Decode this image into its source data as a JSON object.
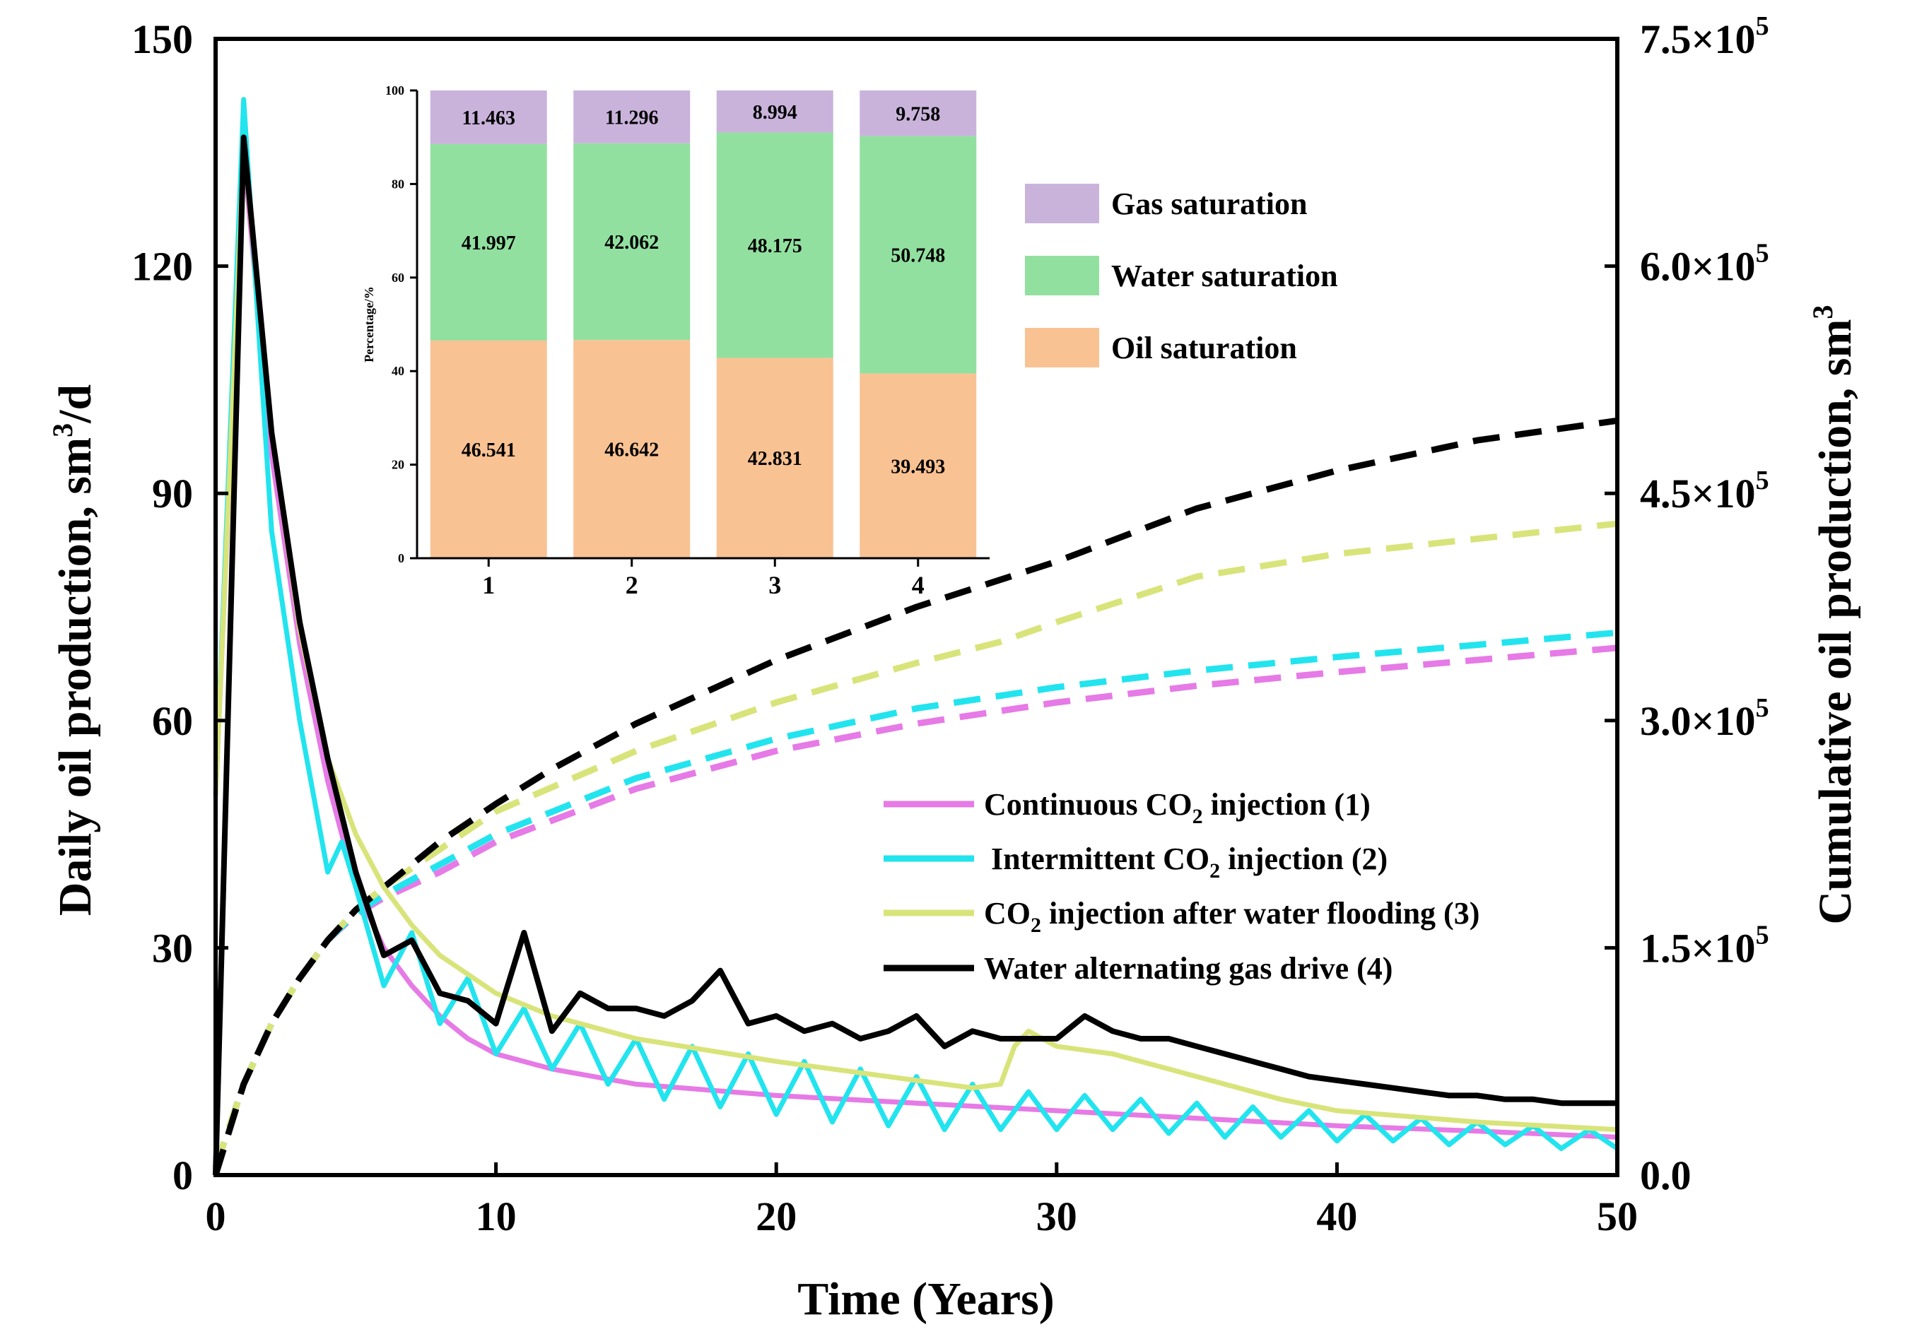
{
  "chart_data": {
    "type": "line",
    "main": {
      "xlabel": "Time (Years)",
      "ylabel": "Daily oil production, sm³/d",
      "ylabel_parts": {
        "pre": "Daily oil production, sm",
        "sup": "3",
        "post": "/d"
      },
      "y2label": "Cumulative oil production, sm³",
      "y2label_parts": {
        "pre": "Cumulative oil production, sm",
        "sup": "3"
      },
      "xlim": [
        0,
        50
      ],
      "ylim": [
        0,
        150
      ],
      "y2lim": [
        0,
        750000
      ],
      "xticks": [
        "0",
        "10",
        "20",
        "30",
        "40",
        "50"
      ],
      "yticks": [
        "0",
        "30",
        "60",
        "90",
        "120",
        "150"
      ],
      "y2ticks": [
        {
          "mant": "0.0",
          "exp": ""
        },
        {
          "mant": "1.5×10",
          "exp": "5"
        },
        {
          "mant": "3.0×10",
          "exp": "5"
        },
        {
          "mant": "4.5×10",
          "exp": "5"
        },
        {
          "mant": "6.0×10",
          "exp": "5"
        },
        {
          "mant": "7.5×10",
          "exp": "5"
        }
      ],
      "series": [
        {
          "name": "Continuous CO2 injection (1)",
          "label_parts": {
            "pre": "Continuous CO",
            "sub": "2",
            "post": " injection (1)"
          },
          "color": "#e67ae6",
          "daily": {
            "x": [
              0,
              1,
              2,
              3,
              4,
              5,
              6,
              7,
              8,
              9,
              10,
              12,
              15,
              20,
              25,
              30,
              35,
              40,
              45,
              50
            ],
            "y": [
              50,
              135,
              95,
              70,
              52,
              38,
              30,
              25,
              21,
              18,
              16,
              14,
              12,
              10.5,
              9.5,
              8.5,
              7.5,
              6.5,
              5.8,
              5
            ]
          },
          "cumulative": {
            "x": [
              0,
              1,
              2,
              3,
              4,
              5,
              6,
              8,
              10,
              15,
              20,
              25,
              30,
              35,
              40,
              45,
              50
            ],
            "y": [
              5000,
              60000,
              100000,
              130000,
              155000,
              172000,
              183000,
              200000,
              220000,
              255000,
              280000,
              298000,
              312000,
              323000,
              332000,
              340000,
              348000
            ]
          }
        },
        {
          "name": "Intermittent CO2 injection (2)",
          "label_parts": {
            "pre": "Intermittent CO",
            "sub": "2",
            "post": " injection (2)"
          },
          "color": "#22e4ee",
          "daily": {
            "x": [
              0,
              1,
              2,
              3,
              4,
              4.5,
              5,
              6,
              7,
              8,
              9,
              10,
              11,
              12,
              13,
              14,
              15,
              16,
              17,
              18,
              19,
              20,
              21,
              22,
              23,
              24,
              25,
              26,
              27,
              28,
              29,
              30,
              31,
              32,
              33,
              34,
              35,
              36,
              37,
              38,
              39,
              40,
              41,
              42,
              43,
              44,
              45,
              46,
              47,
              48,
              49,
              50
            ],
            "y": [
              50,
              142,
              85,
              60,
              40,
              44,
              38,
              25,
              32,
              20,
              26,
              16,
              22,
              14,
              20,
              12,
              18,
              10,
              17,
              9,
              16,
              8,
              15,
              7,
              14,
              6.5,
              13,
              6,
              12,
              6,
              11,
              6,
              10.5,
              6,
              10,
              5.5,
              9.5,
              5,
              9,
              5,
              8.5,
              4.5,
              8,
              4.5,
              7.5,
              4,
              7,
              4,
              6.5,
              3.5,
              6,
              3.5
            ]
          },
          "cumulative": {
            "x": [
              0,
              1,
              2,
              3,
              4,
              5,
              6,
              8,
              10,
              15,
              20,
              25,
              30,
              35,
              40,
              45,
              50
            ],
            "y": [
              5000,
              60000,
              100000,
              130000,
              155000,
              173000,
              185000,
              205000,
              225000,
              262000,
              288000,
              308000,
              322000,
              333000,
              342000,
              350000,
              358000
            ]
          }
        },
        {
          "name": "CO2 injection after water flooding (3)",
          "label_parts": {
            "pre": "CO",
            "sub": "2",
            "post": " injection after water flooding (3)"
          },
          "color": "#d8e47a",
          "daily": {
            "x": [
              0,
              1,
              2,
              3,
              4,
              5,
              6,
              7,
              8,
              10,
              12,
              15,
              20,
              25,
              27,
              28,
              28.5,
              29,
              30,
              32,
              35,
              38,
              40,
              45,
              50
            ],
            "y": [
              50,
              136,
              98,
              72,
              55,
              45,
              38,
              33,
              29,
              24,
              21,
              18,
              15,
              12.5,
              11.5,
              12,
              17,
              19,
              17,
              16,
              13,
              10,
              8.5,
              7,
              6
            ]
          },
          "cumulative": {
            "x": [
              0,
              1,
              2,
              3,
              4,
              5,
              6,
              8,
              10,
              15,
              20,
              25,
              28,
              30,
              35,
              40,
              45,
              50
            ],
            "y": [
              5000,
              60000,
              100000,
              130000,
              155000,
              175000,
              190000,
              215000,
              240000,
              280000,
              312000,
              338000,
              352000,
              365000,
              395000,
              410000,
              420000,
              430000
            ]
          }
        },
        {
          "name": "Water alternating gas drive (4)",
          "label_parts": {
            "pre": "Water alternating gas drive (4)",
            "sub": "",
            "post": ""
          },
          "color": "#000000",
          "daily": {
            "x": [
              0,
              1,
              2,
              3,
              4,
              5,
              6,
              7,
              8,
              9,
              10,
              11,
              12,
              13,
              14,
              15,
              16,
              17,
              18,
              19,
              20,
              21,
              22,
              23,
              24,
              25,
              26,
              27,
              28,
              29,
              30,
              31,
              32,
              33,
              34,
              35,
              36,
              37,
              38,
              39,
              40,
              41,
              42,
              43,
              44,
              45,
              46,
              47,
              48,
              49,
              50
            ],
            "y": [
              0,
              137,
              98,
              73,
              55,
              40,
              29,
              31,
              24,
              23,
              20,
              32,
              19,
              24,
              22,
              22,
              21,
              23,
              27,
              20,
              21,
              19,
              20,
              18,
              19,
              21,
              17,
              19,
              18,
              18,
              18,
              21,
              19,
              18,
              18,
              17,
              16,
              15,
              14,
              13,
              12.5,
              12,
              11.5,
              11,
              10.5,
              10.5,
              10,
              10,
              9.5,
              9.5,
              9.5
            ]
          },
          "cumulative": {
            "x": [
              0,
              1,
              2,
              3,
              4,
              5,
              6,
              8,
              10,
              12,
              15,
              20,
              25,
              30,
              35,
              40,
              45,
              50
            ],
            "y": [
              0,
              60000,
              100000,
              130000,
              155000,
              175000,
              190000,
              220000,
              245000,
              268000,
              298000,
              340000,
              375000,
              405000,
              440000,
              465000,
              485000,
              498000
            ]
          }
        }
      ]
    },
    "inset": {
      "type": "bar",
      "stacked": true,
      "ylabel": "Percentage/%",
      "ylim": [
        0,
        100
      ],
      "yticks": [
        "0",
        "20",
        "40",
        "60",
        "80",
        "100"
      ],
      "categories": [
        "1",
        "2",
        "3",
        "4"
      ],
      "series": [
        {
          "name": "Oil saturation",
          "color": "#f9c293",
          "values": [
            46.541,
            46.642,
            42.831,
            39.493
          ],
          "labels": [
            "46.541",
            "46.642",
            "42.831",
            "39.493"
          ]
        },
        {
          "name": "Water saturation",
          "color": "#92e0a0",
          "values": [
            41.997,
            42.062,
            48.175,
            50.748
          ],
          "labels": [
            "41.997",
            "42.062",
            "48.175",
            "50.748"
          ]
        },
        {
          "name": "Gas saturation",
          "color": "#c9b3db",
          "values": [
            11.463,
            11.296,
            8.994,
            9.758
          ],
          "labels": [
            "11.463",
            "11.296",
            "8.994",
            "9.758"
          ]
        }
      ],
      "legend_order": [
        "Gas saturation",
        "Water saturation",
        "Oil saturation"
      ]
    }
  }
}
